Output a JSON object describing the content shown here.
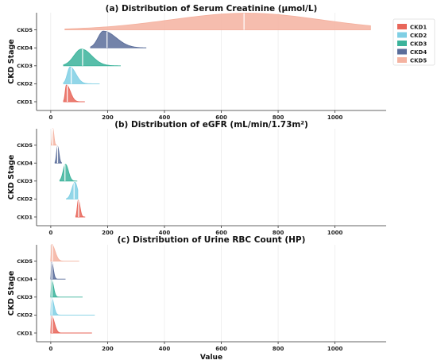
{
  "chart_data": {
    "type": "ridgeline",
    "xlabel": "Value",
    "ylabel": "CKD Stage",
    "xlim": [
      -50,
      1180
    ],
    "xticks": [
      0,
      200,
      400,
      600,
      800,
      1000
    ],
    "grid": true,
    "legend": {
      "placement": "top-right",
      "entries": [
        "CKD1",
        "CKD2",
        "CKD3",
        "CKD4",
        "CKD5"
      ]
    },
    "colors": {
      "CKD1": "#e8665a",
      "CKD2": "#7fcfe4",
      "CKD3": "#3bb39b",
      "CKD4": "#5a6d9a",
      "CKD5": "#f4b2a0"
    },
    "categories": [
      "CKD1",
      "CKD2",
      "CKD3",
      "CKD4",
      "CKD5"
    ],
    "panels": [
      {
        "title": "(a) Distribution of Serum Creatinine (μmol/L)",
        "series": [
          {
            "name": "CKD1",
            "min": 45,
            "max": 120,
            "mode": 55,
            "median": 58,
            "spread": 14
          },
          {
            "name": "CKD2",
            "min": 45,
            "max": 172,
            "mode": 68,
            "median": 72,
            "spread": 20
          },
          {
            "name": "CKD3",
            "min": 45,
            "max": 245,
            "mode": 108,
            "median": 112,
            "spread": 36
          },
          {
            "name": "CKD4",
            "min": 140,
            "max": 335,
            "mode": 185,
            "median": 198,
            "spread": 45
          },
          {
            "name": "CKD5",
            "min": 50,
            "max": 1125,
            "mode": 690,
            "median": 680,
            "spread": 260
          }
        ]
      },
      {
        "title": "(b) Distribution of eGFR (mL/min/1.73m²)",
        "series": [
          {
            "name": "CKD1",
            "min": 88,
            "max": 120,
            "mode": 97,
            "median": 98,
            "spread": 6
          },
          {
            "name": "CKD2",
            "min": 55,
            "max": 95,
            "mode": 85,
            "median": 82,
            "spread": 9
          },
          {
            "name": "CKD3",
            "min": 32,
            "max": 92,
            "mode": 52,
            "median": 50,
            "spread": 10
          },
          {
            "name": "CKD4",
            "min": 15,
            "max": 38,
            "mode": 24,
            "median": 24,
            "spread": 5
          },
          {
            "name": "CKD5",
            "min": 2,
            "max": 20,
            "mode": 7,
            "median": 7,
            "spread": 4
          }
        ]
      },
      {
        "title": "(c) Distribution of Urine RBC Count (HP)",
        "series": [
          {
            "name": "CKD1",
            "min": 0,
            "max": 145,
            "mode": 3,
            "median": 5,
            "spread": 10
          },
          {
            "name": "CKD2",
            "min": 0,
            "max": 155,
            "mode": 3,
            "median": 4,
            "spread": 8
          },
          {
            "name": "CKD3",
            "min": 0,
            "max": 112,
            "mode": 3,
            "median": 4,
            "spread": 7
          },
          {
            "name": "CKD4",
            "min": 0,
            "max": 52,
            "mode": 3,
            "median": 4,
            "spread": 6
          },
          {
            "name": "CKD5",
            "min": 0,
            "max": 100,
            "mode": 3,
            "median": 6,
            "spread": 12
          }
        ]
      }
    ]
  }
}
